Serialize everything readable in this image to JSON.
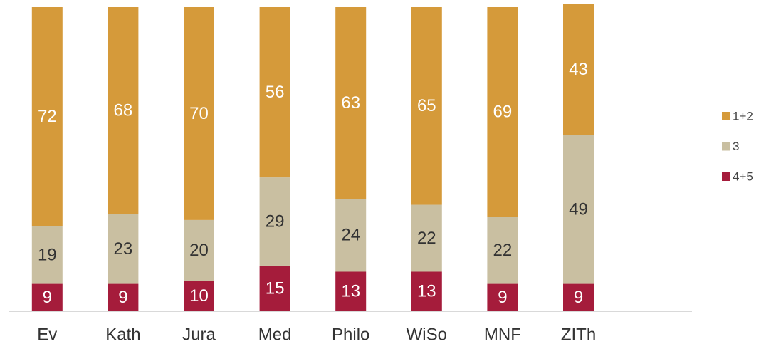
{
  "chart_data": {
    "type": "stacked_bar",
    "categories": [
      "Ev",
      "Kath",
      "Jura",
      "Med",
      "Philo",
      "WiSo",
      "MNF",
      "ZITh"
    ],
    "series": [
      {
        "name": "1+2",
        "color": "#d59a3a",
        "values": [
          72,
          68,
          70,
          56,
          63,
          65,
          69,
          43
        ]
      },
      {
        "name": "3",
        "color": "#c9bfa1",
        "values": [
          19,
          23,
          20,
          29,
          24,
          22,
          22,
          49
        ]
      },
      {
        "name": "4+5",
        "color": "#a51c3b",
        "values": [
          9,
          9,
          10,
          15,
          13,
          13,
          9,
          9
        ]
      }
    ],
    "ylim": [
      0,
      100
    ],
    "legend": "right"
  }
}
